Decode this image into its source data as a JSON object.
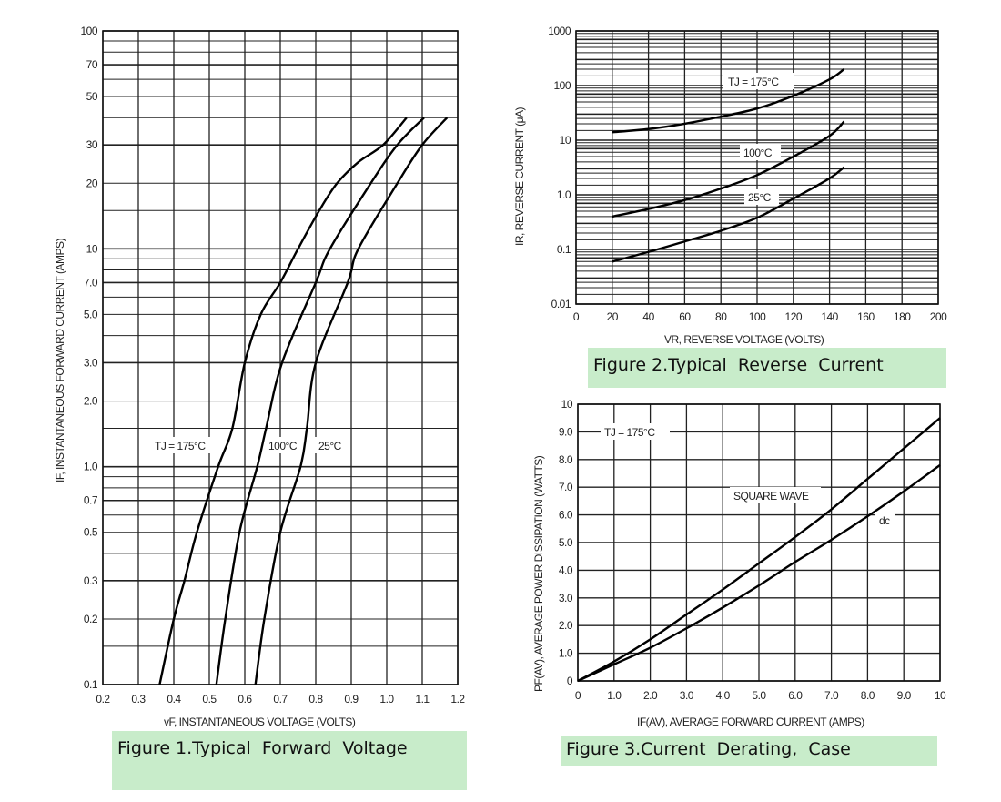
{
  "chart_data": [
    {
      "id": "fig1",
      "type": "line",
      "caption": "Figure 1.Typical  Forward  Voltage",
      "xlabel": "vF, INSTANTANEOUS VOLTAGE (VOLTS)",
      "ylabel": "IF, INSTANTANEOUS FORWARD CURRENT (AMPS)",
      "xscale": "linear",
      "yscale": "log",
      "xlim": [
        0.2,
        1.2
      ],
      "ylim": [
        0.1,
        100
      ],
      "xticks": [
        "0.2",
        "0.3",
        "0.4",
        "0.5",
        "0.6",
        "0.7",
        "0.8",
        "0.9",
        "1.0",
        "1.1",
        "1.2"
      ],
      "yticks": [
        {
          "v": 100,
          "label": "100"
        },
        {
          "v": 70,
          "label": "70"
        },
        {
          "v": 50,
          "label": "50"
        },
        {
          "v": 30,
          "label": "30"
        },
        {
          "v": 20,
          "label": "20"
        },
        {
          "v": 10,
          "label": "10"
        },
        {
          "v": 7,
          "label": "7.0"
        },
        {
          "v": 5,
          "label": "5.0"
        },
        {
          "v": 3,
          "label": "3.0"
        },
        {
          "v": 2,
          "label": "2.0"
        },
        {
          "v": 1,
          "label": "1.0"
        },
        {
          "v": 0.7,
          "label": "0.7"
        },
        {
          "v": 0.5,
          "label": "0.5"
        },
        {
          "v": 0.3,
          "label": "0.3"
        },
        {
          "v": 0.2,
          "label": "0.2"
        },
        {
          "v": 0.1,
          "label": "0.1"
        }
      ],
      "grid": true,
      "series": [
        {
          "name": "TJ = 175°C",
          "x": [
            0.36,
            0.4,
            0.43,
            0.465,
            0.525,
            0.565,
            0.6,
            0.645,
            0.7,
            0.75,
            0.81,
            0.86,
            0.92,
            0.99,
            1.056
          ],
          "y": [
            0.1,
            0.2,
            0.3,
            0.5,
            1.0,
            1.5,
            3,
            5,
            7,
            10,
            15,
            20,
            25,
            30,
            40
          ]
        },
        {
          "name": "100°C",
          "x": [
            0.52,
            0.545,
            0.585,
            0.635,
            0.66,
            0.705,
            0.8,
            0.84,
            0.955,
            1.03,
            1.105
          ],
          "y": [
            0.1,
            0.2,
            0.5,
            1.0,
            1.5,
            3,
            7,
            10,
            20,
            30,
            40
          ]
        },
        {
          "name": "25°C",
          "x": [
            0.63,
            0.655,
            0.7,
            0.757,
            0.775,
            0.8,
            0.89,
            0.92,
            1.03,
            1.1,
            1.17
          ],
          "y": [
            0.1,
            0.2,
            0.5,
            1.0,
            1.5,
            3,
            7,
            10,
            20,
            30,
            40
          ]
        }
      ]
    },
    {
      "id": "fig2",
      "type": "line",
      "caption": "Figure 2.Typical  Reverse  Current",
      "xlabel": "VR, REVERSE VOLTAGE (VOLTS)",
      "ylabel": "IR, REVERSE CURRENT (μA)",
      "xscale": "linear",
      "yscale": "log",
      "xlim": [
        0,
        200
      ],
      "ylim": [
        0.01,
        1000
      ],
      "xticks": [
        "0",
        "20",
        "40",
        "60",
        "80",
        "100",
        "120",
        "140",
        "160",
        "180",
        "200"
      ],
      "yticks": [
        {
          "v": 1000,
          "label": "1000"
        },
        {
          "v": 100,
          "label": "100"
        },
        {
          "v": 10,
          "label": "10"
        },
        {
          "v": 1,
          "label": "1.0"
        },
        {
          "v": 0.1,
          "label": "0.1"
        },
        {
          "v": 0.01,
          "label": "0.01"
        }
      ],
      "grid": true,
      "series": [
        {
          "name": "TJ = 175°C",
          "x": [
            20,
            40,
            60,
            80,
            100,
            120,
            140,
            148
          ],
          "y": [
            14,
            16,
            20,
            27,
            38,
            65,
            130,
            200
          ]
        },
        {
          "name": "100°C",
          "x": [
            20,
            40,
            60,
            80,
            100,
            120,
            140,
            148
          ],
          "y": [
            0.4,
            0.55,
            0.8,
            1.3,
            2.3,
            5,
            12,
            22
          ]
        },
        {
          "name": "25°C",
          "x": [
            20,
            40,
            60,
            80,
            100,
            120,
            140,
            148
          ],
          "y": [
            0.06,
            0.09,
            0.14,
            0.22,
            0.38,
            0.85,
            2.0,
            3.2
          ]
        }
      ]
    },
    {
      "id": "fig3",
      "type": "line",
      "caption": "Figure 3.Current  Derating,  Case",
      "xlabel": "IF(AV), AVERAGE FORWARD CURRENT (AMPS)",
      "ylabel": "PF(AV), AVERAGE POWER DISSIPATION (WATTS)",
      "xscale": "linear",
      "yscale": "linear",
      "xlim": [
        0,
        10
      ],
      "ylim": [
        0,
        10
      ],
      "xticks": [
        "0",
        "1.0",
        "2.0",
        "3.0",
        "4.0",
        "5.0",
        "6.0",
        "7.0",
        "8.0",
        "9.0",
        "10"
      ],
      "yticks": [
        {
          "v": 10,
          "label": "10"
        },
        {
          "v": 9,
          "label": "9.0"
        },
        {
          "v": 8,
          "label": "8.0"
        },
        {
          "v": 7,
          "label": "7.0"
        },
        {
          "v": 6,
          "label": "6.0"
        },
        {
          "v": 5,
          "label": "5.0"
        },
        {
          "v": 4,
          "label": "4.0"
        },
        {
          "v": 3,
          "label": "3.0"
        },
        {
          "v": 2,
          "label": "2.0"
        },
        {
          "v": 1,
          "label": "1.0"
        },
        {
          "v": 0,
          "label": "0"
        }
      ],
      "grid": true,
      "annotation": "TJ = 175°C",
      "series": [
        {
          "name": "SQUARE WAVE",
          "x": [
            0,
            1,
            2,
            3,
            4,
            5,
            6,
            7,
            8,
            9,
            10
          ],
          "y": [
            0,
            0.7,
            1.5,
            2.4,
            3.3,
            4.25,
            5.2,
            6.2,
            7.3,
            8.4,
            9.5
          ]
        },
        {
          "name": "dc",
          "x": [
            0,
            1,
            2,
            3,
            4,
            5,
            6,
            7,
            8,
            9,
            10
          ],
          "y": [
            0,
            0.6,
            1.2,
            1.9,
            2.65,
            3.45,
            4.3,
            5.1,
            5.95,
            6.85,
            7.8
          ]
        }
      ]
    }
  ]
}
